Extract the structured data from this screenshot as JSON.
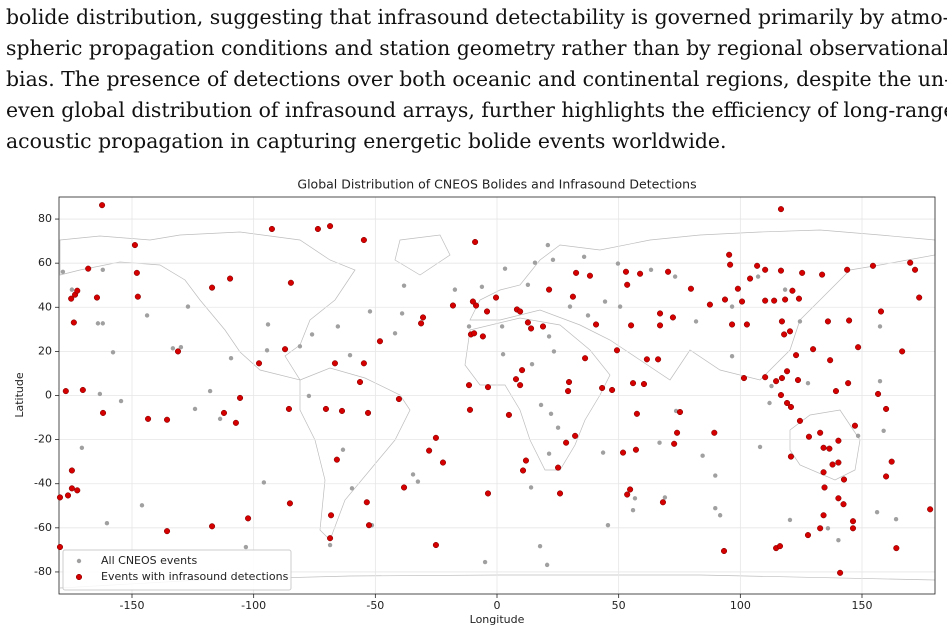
{
  "paragraph": {
    "lines": [
      "bolide distribution, suggesting that infrasound detectability is governed primarily by atmo-",
      "spheric propagation conditions and station geometry rather than by regional observational",
      "bias. The presence of detections over both oceanic and continental regions, despite the un-",
      "even global distribution of infrasound arrays, further highlights the efficiency of long-range",
      "acoustic propagation in capturing energetic bolide events worldwide."
    ]
  },
  "chart_data": {
    "type": "scatter",
    "title": "Global Distribution of CNEOS Bolides and Infrasound Detections",
    "x_label": "Longitude",
    "y_label": "Latitude",
    "xlim": [
      -180,
      180
    ],
    "ylim": [
      -90,
      90
    ],
    "xticks": [
      -150,
      -100,
      -50,
      0,
      50,
      100,
      150
    ],
    "yticks": [
      -80,
      -60,
      -40,
      -20,
      0,
      20,
      40,
      60,
      80
    ],
    "grid": true,
    "legend": "lower left",
    "series": [
      {
        "name": "All CNEOS events",
        "color": "#a0a0a0",
        "x": [
          -178.4,
          -162,
          -162,
          -164,
          -174.7,
          -127,
          -143.8,
          -133.2,
          -129.9,
          -157.8,
          -154.5,
          -163.2,
          -170.6,
          -160.3,
          -145.9,
          -124.1,
          -117.9,
          -109.3,
          -113.8,
          -94.1,
          -94.5,
          -81,
          -76,
          -65.4,
          -52.2,
          -60.4,
          -77.3,
          -63.3,
          -59.6,
          -51.4,
          -68.6,
          -95.8,
          -34.5,
          -32.5,
          -39,
          -41.9,
          -38.2,
          -17.3,
          -11.5,
          2.1,
          12.7,
          15.6,
          23,
          20.9,
          35.8,
          44.4,
          50.6,
          37.4,
          21.4,
          23.4,
          2.5,
          14.4,
          18.1,
          22.2,
          25.1,
          21.4,
          14,
          43.6,
          45.6,
          55.9,
          56.7,
          69,
          89.7,
          91.7,
          89.7,
          73.6,
          66.8,
          84.5,
          96.6,
          112.8,
          112,
          108.1,
          120.4,
          136,
          140.3,
          156.2,
          164,
          157.4,
          157.4,
          158.9,
          148.4,
          127.8,
          107.3,
          73.2,
          63.3,
          118.4,
          124.5,
          96.6,
          81.8,
          49.7,
          30,
          -6.2,
          3.3,
          20.6,
          -4.9,
          17.7,
          -103.2
        ],
        "y": [
          56.1,
          57,
          32.7,
          32.7,
          48,
          40.3,
          36.3,
          21.4,
          21.9,
          19.6,
          -2.5,
          0.7,
          -23.7,
          -57.9,
          -49.8,
          -6.1,
          2,
          16.9,
          -10.6,
          32.2,
          20.5,
          22.3,
          27.7,
          31.3,
          38.1,
          18.3,
          -0.2,
          -24.6,
          -42.1,
          -58.8,
          -67.8,
          -39.4,
          -35.8,
          -39,
          37.2,
          28.2,
          49.8,
          48,
          31.3,
          31.3,
          50.2,
          60.2,
          61.5,
          68.2,
          62.9,
          42.6,
          40.3,
          36.3,
          26.8,
          20,
          18.7,
          14.2,
          -4.3,
          -8.3,
          -14.6,
          -26.4,
          -41.7,
          -25.9,
          -58.8,
          -52,
          -46.6,
          -46.2,
          -51.1,
          -54.3,
          -36.3,
          -7,
          -21.4,
          -27.3,
          17.8,
          4.3,
          -3.4,
          -23.3,
          -56.4,
          -60.2,
          -65.6,
          -52.9,
          -56.1,
          31.3,
          6.5,
          -16,
          -18.3,
          5.6,
          53.9,
          53.9,
          57,
          48,
          33.6,
          40.3,
          33.6,
          59.8,
          40.3,
          49.3,
          57.5,
          -76.8,
          -75.5,
          -68.3,
          -68.7
        ]
      },
      {
        "name": "Events with infrasound detections",
        "color": "#d40000",
        "edgecolor": "#7a0000",
        "x": [
          -162.3,
          -92.5,
          -73.6,
          -68.6,
          -148.8,
          -168,
          -148,
          -54.7,
          -9,
          -109.7,
          -117.1,
          -84.7,
          -173.4,
          -175,
          -172.5,
          -164.4,
          -147.6,
          -173.9,
          -48.1,
          -30.4,
          -31.2,
          -18.1,
          -8.6,
          -10.7,
          8.2,
          12.7,
          14,
          18.9,
          21.4,
          31.2,
          32.5,
          38.2,
          53,
          53.5,
          58.8,
          70.3,
          67,
          67,
          79.7,
          95.4,
          95.8,
          106.9,
          110.2,
          104,
          99,
          93.7,
          87.5,
          100.7,
          110.2,
          102.7,
          96.6,
          116.7,
          116.7,
          113.9,
          118.4,
          124.1,
          125.4,
          143.9,
          133.6,
          121.4,
          136,
          144.7,
          117.1,
          118,
          120.4,
          154.5,
          157.8,
          169.8,
          171.8,
          173.5,
          148.4,
          122.9,
          129.9,
          117.1,
          114.7,
          119.2,
          101.5,
          110.2,
          116.7,
          123.7,
          136.9,
          139.3,
          144.3,
          156.6,
          166.5,
          159.9,
          119.2,
          120.8,
          124.5,
          132.8,
          128.2,
          120.8,
          134.2,
          136.6,
          140.3,
          137.9,
          140.3,
          147.1,
          134.2,
          134.6,
          140.3,
          142.4,
          134.2,
          132.8,
          127.8,
          146.3,
          146.3,
          141,
          164.1,
          178,
          162.2,
          159.9,
          142.6,
          114.7,
          116.3,
          93.3,
          68.2,
          54.7,
          53.5,
          51.8,
          57.1,
          57.5,
          75.2,
          74,
          72.8,
          89.3,
          60.4,
          55.9,
          49.3,
          47.3,
          36.2,
          29.6,
          29.2,
          43.2,
          32.1,
          28.4,
          25.1,
          25.9,
          11.9,
          10.7,
          -3.7,
          -22.2,
          -25.1,
          -27.9,
          -38.2,
          -52.6,
          -53.5,
          -53,
          -54.7,
          -68.6,
          -68.2,
          -63.7,
          -70.3,
          -65.8,
          -85.5,
          -85.1,
          -102.3,
          -107.3,
          -112.2,
          -97.8,
          -87.1,
          -66.6,
          -131.1,
          -135.6,
          -143.4,
          -161.9,
          -170.2,
          -177.2,
          -174.7,
          -174.7,
          -172.5,
          -176.3,
          -179.6,
          -135.6,
          -117.1,
          -25.1,
          7.8,
          -5.8,
          -4.1,
          9.5,
          10.3,
          9.5,
          55.1,
          61.6,
          66.2,
          72.3,
          40.7,
          4.9,
          -11.1,
          -11.5,
          -3.7,
          -9.4,
          -0.4,
          -9.9,
          -40.3,
          -56.3,
          -105.6,
          -179.6
        ],
        "y": [
          86.3,
          75.5,
          75.5,
          76.8,
          68.2,
          57.5,
          55.6,
          70.5,
          69.6,
          53,
          48.9,
          51.1,
          45.7,
          43.9,
          47.5,
          44.4,
          44.8,
          33.1,
          24.6,
          35.4,
          32.7,
          40.8,
          40.8,
          27.7,
          39,
          33.1,
          30.4,
          31.3,
          48,
          44.8,
          55.6,
          54.3,
          56.1,
          50.2,
          55.2,
          56.1,
          37.2,
          31.8,
          48.4,
          63.8,
          59.3,
          58.8,
          57,
          53,
          48.4,
          43.5,
          41.2,
          42.6,
          43,
          32.2,
          32.2,
          84.5,
          56.6,
          43,
          43.5,
          43.9,
          55.6,
          57,
          54.8,
          47.5,
          33.6,
          34,
          33.6,
          27.7,
          29.1,
          58.8,
          38.1,
          60.2,
          57,
          44.4,
          21.9,
          18.3,
          21,
          7.9,
          6.5,
          11,
          7.9,
          8.3,
          0.2,
          7,
          16,
          2,
          5.6,
          0.7,
          20,
          -6.1,
          -3.4,
          -5.2,
          -11.5,
          -16.9,
          -18.7,
          -27.7,
          -23.7,
          -24.1,
          -30.4,
          -31.3,
          -20.5,
          -13.7,
          -34.8,
          -41.7,
          -46.6,
          -49.3,
          -54.3,
          -60.2,
          -63.3,
          -57,
          -60.2,
          -80.4,
          -69.2,
          -51.6,
          -30,
          -36.7,
          -38.1,
          -69.2,
          -68.3,
          -70.5,
          -48.4,
          -42.6,
          -44.9,
          -25.9,
          -24.6,
          -8.3,
          -7.5,
          -16.9,
          -21.9,
          -16.9,
          5.2,
          5.6,
          20.5,
          2.5,
          16.9,
          6.1,
          2,
          3.4,
          -18.3,
          -21.4,
          -32.7,
          -44.4,
          -29.5,
          -34,
          -44.4,
          -30.4,
          -19.2,
          -25,
          -41.7,
          -58.8,
          -48.4,
          -7.9,
          14.6,
          -64.7,
          -54.3,
          -7,
          -6.1,
          -29.1,
          -6.1,
          -48.9,
          -55.7,
          -12.4,
          -7.9,
          14.6,
          21,
          14.6,
          20,
          -11,
          -10.6,
          -7.9,
          2.5,
          2,
          -34,
          -42.1,
          -43,
          -45.3,
          -46.2,
          -61.5,
          -59.3,
          -67.8,
          7.4,
          26.8,
          38.1,
          38.1,
          11.5,
          4.7,
          31.8,
          16.4,
          16.4,
          35.4,
          32.2,
          -8.8,
          -6.5,
          4.7,
          3.8,
          28.2,
          44.4,
          42.6,
          -1.6,
          6.1,
          -1.1,
          -68.7
        ]
      }
    ]
  }
}
